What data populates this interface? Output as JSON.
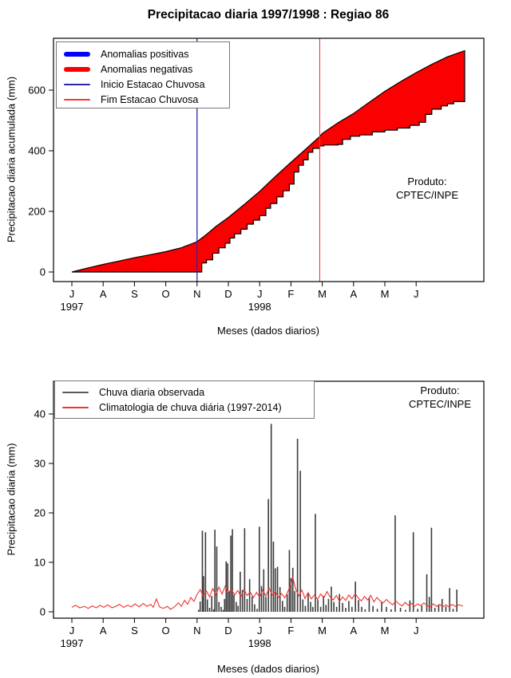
{
  "title": "Precipitacao diaria 1997/1998 : Regiao 86",
  "months": [
    "J",
    "A",
    "S",
    "O",
    "N",
    "D",
    "J",
    "F",
    "M",
    "A",
    "M",
    "J"
  ],
  "years": [
    {
      "label": "1997",
      "month_index": 0
    },
    {
      "label": "1998",
      "month_index": 6
    }
  ],
  "chart_data": [
    {
      "type": "area",
      "name": "cumulative-precipitation",
      "title": "Precipitacao diaria 1997/1998 : Regiao 86",
      "ylabel": "Precipitacao diaria acumulada (mm)",
      "xlabel": "Meses (dados diarios)",
      "yticks": [
        0,
        200,
        400,
        600
      ],
      "ylim": [
        0,
        770
      ],
      "grid": false,
      "legend_position": "top-left",
      "produto_label": "Produto:",
      "produto_value": "CPTEC/INPE",
      "legend": [
        {
          "label": "Anomalias positivas",
          "color": "#0000ff",
          "thick": true
        },
        {
          "label": "Anomalias negativas",
          "color": "#fb0000",
          "thick": true
        },
        {
          "label": "Inicio Estacao Chuvosa",
          "color": "#2828a8",
          "thick": false
        },
        {
          "label": "Fim Estacao Chuvosa",
          "color": "#ff3333",
          "thick": false
        }
      ],
      "inicio_month": 4.0,
      "fim_month": 7.92,
      "fill_color": "#fb0000",
      "edge_color": "#000000",
      "series": [
        {
          "name": "Climatologia acumulada",
          "role": "upper",
          "points": [
            [
              0,
              0
            ],
            [
              0.5,
              13
            ],
            [
              1,
              25
            ],
            [
              1.5,
              36
            ],
            [
              2,
              47
            ],
            [
              2.5,
              57
            ],
            [
              3,
              67
            ],
            [
              3.5,
              80
            ],
            [
              4,
              100
            ],
            [
              4.3,
              124
            ],
            [
              4.6,
              150
            ],
            [
              5,
              180
            ],
            [
              5.5,
              222
            ],
            [
              6,
              266
            ],
            [
              6.5,
              315
            ],
            [
              7,
              362
            ],
            [
              7.5,
              408
            ],
            [
              7.92,
              447
            ],
            [
              8,
              457
            ],
            [
              8.5,
              492
            ],
            [
              9,
              523
            ],
            [
              9.5,
              560
            ],
            [
              10,
              596
            ],
            [
              10.5,
              628
            ],
            [
              11,
              658
            ],
            [
              11.5,
              685
            ],
            [
              12,
              710
            ],
            [
              12.55,
              730
            ]
          ]
        },
        {
          "name": "Observada acumulada",
          "role": "lower-step",
          "points": [
            [
              4.05,
              0
            ],
            [
              4.15,
              30
            ],
            [
              4.3,
              40
            ],
            [
              4.5,
              62
            ],
            [
              4.7,
              80
            ],
            [
              4.9,
              95
            ],
            [
              5.05,
              112
            ],
            [
              5.2,
              126
            ],
            [
              5.4,
              141
            ],
            [
              5.6,
              158
            ],
            [
              5.8,
              171
            ],
            [
              6.0,
              186
            ],
            [
              6.2,
              210
            ],
            [
              6.35,
              226
            ],
            [
              6.55,
              248
            ],
            [
              6.75,
              268
            ],
            [
              6.95,
              290
            ],
            [
              7.1,
              330
            ],
            [
              7.25,
              352
            ],
            [
              7.4,
              370
            ],
            [
              7.55,
              395
            ],
            [
              7.7,
              408
            ],
            [
              7.92,
              416
            ],
            [
              8.05,
              419
            ],
            [
              8.5,
              421
            ],
            [
              8.65,
              438
            ],
            [
              8.9,
              448
            ],
            [
              9.2,
              452
            ],
            [
              9.6,
              462
            ],
            [
              10.0,
              468
            ],
            [
              10.4,
              475
            ],
            [
              10.8,
              484
            ],
            [
              11.1,
              494
            ],
            [
              11.3,
              520
            ],
            [
              11.5,
              537
            ],
            [
              11.8,
              548
            ],
            [
              12.0,
              555
            ],
            [
              12.2,
              562
            ],
            [
              12.55,
              575
            ]
          ]
        }
      ]
    },
    {
      "type": "bar",
      "name": "daily-precipitation",
      "ylabel": "Precipitacao diaria (mm)",
      "xlabel": "Meses (dados diarios)",
      "yticks": [
        0,
        10,
        20,
        30,
        40
      ],
      "ylim": [
        0,
        46
      ],
      "grid": false,
      "legend_position": "top-left",
      "produto_label": "Produto:",
      "produto_value": "CPTEC/INPE",
      "legend": [
        {
          "label": "Chuva diaria observada",
          "color": "#5a5a5a",
          "thick": false
        },
        {
          "label": "Climatologia de chuva diária (1997-2014)",
          "color": "#ef3333",
          "thick": false
        }
      ],
      "bars": {
        "name": "Chuva diaria observada",
        "color": "#3c3c3c",
        "points": [
          [
            4.05,
            0.4
          ],
          [
            4.1,
            2.1
          ],
          [
            4.17,
            16.4
          ],
          [
            4.21,
            7.2
          ],
          [
            4.27,
            16.1
          ],
          [
            4.33,
            2.5
          ],
          [
            4.4,
            0.8
          ],
          [
            4.47,
            3.2
          ],
          [
            4.53,
            0.5
          ],
          [
            4.57,
            16.6
          ],
          [
            4.63,
            13.2
          ],
          [
            4.7,
            2
          ],
          [
            4.77,
            1
          ],
          [
            4.83,
            0.4
          ],
          [
            4.88,
            2.6
          ],
          [
            4.93,
            10.2
          ],
          [
            4.98,
            9.8
          ],
          [
            5.03,
            4.1
          ],
          [
            5.08,
            15.4
          ],
          [
            5.13,
            16.7
          ],
          [
            5.18,
            3.4
          ],
          [
            5.25,
            2
          ],
          [
            5.31,
            1.2
          ],
          [
            5.38,
            8.1
          ],
          [
            5.45,
            4.4
          ],
          [
            5.52,
            16.9
          ],
          [
            5.6,
            2.6
          ],
          [
            5.68,
            6.6
          ],
          [
            5.76,
            3.1
          ],
          [
            5.84,
            1.5
          ],
          [
            5.92,
            0.6
          ],
          [
            5.99,
            17.2
          ],
          [
            6.06,
            5.2
          ],
          [
            6.13,
            8.6
          ],
          [
            6.2,
            3
          ],
          [
            6.28,
            22.8
          ],
          [
            6.37,
            38
          ],
          [
            6.44,
            14.2
          ],
          [
            6.5,
            8.8
          ],
          [
            6.57,
            9.1
          ],
          [
            6.65,
            5
          ],
          [
            6.73,
            2.2
          ],
          [
            6.8,
            1
          ],
          [
            6.88,
            3.5
          ],
          [
            6.95,
            12.5
          ],
          [
            7.0,
            6.8
          ],
          [
            7.06,
            8.9
          ],
          [
            7.12,
            4.2
          ],
          [
            7.21,
            35
          ],
          [
            7.3,
            28.5
          ],
          [
            7.38,
            2.5
          ],
          [
            7.46,
            1.2
          ],
          [
            7.55,
            3.8
          ],
          [
            7.63,
            2
          ],
          [
            7.7,
            1
          ],
          [
            7.78,
            19.8
          ],
          [
            7.86,
            2.4
          ],
          [
            7.95,
            1
          ],
          [
            8.04,
            3.2
          ],
          [
            8.12,
            1.4
          ],
          [
            8.2,
            2.6
          ],
          [
            8.29,
            5.1
          ],
          [
            8.37,
            2
          ],
          [
            8.46,
            1
          ],
          [
            8.55,
            3.6
          ],
          [
            8.65,
            1.8
          ],
          [
            8.75,
            0.8
          ],
          [
            8.85,
            2.2
          ],
          [
            8.95,
            1
          ],
          [
            9.06,
            6.1
          ],
          [
            9.16,
            2.4
          ],
          [
            9.26,
            1
          ],
          [
            9.37,
            0.5
          ],
          [
            9.5,
            2.8
          ],
          [
            9.62,
            1.2
          ],
          [
            9.76,
            0.6
          ],
          [
            9.9,
            2
          ],
          [
            10.05,
            1
          ],
          [
            10.2,
            0.5
          ],
          [
            10.33,
            19.5
          ],
          [
            10.5,
            0.8
          ],
          [
            10.66,
            0.4
          ],
          [
            10.8,
            2.3
          ],
          [
            10.91,
            16.1
          ],
          [
            11.05,
            0.6
          ],
          [
            11.18,
            1.2
          ],
          [
            11.34,
            7.6
          ],
          [
            11.42,
            3
          ],
          [
            11.49,
            17
          ],
          [
            11.6,
            0.8
          ],
          [
            11.72,
            1.4
          ],
          [
            11.83,
            2.6
          ],
          [
            11.95,
            1.1
          ],
          [
            12.07,
            4.8
          ],
          [
            12.18,
            0.6
          ],
          [
            12.3,
            4.5
          ]
        ]
      },
      "line": {
        "name": "Climatologia de chuva diária (1997-2014)",
        "color": "#ef3333",
        "points": [
          [
            0,
            0.9
          ],
          [
            0.12,
            1.3
          ],
          [
            0.25,
            0.8
          ],
          [
            0.4,
            1.1
          ],
          [
            0.52,
            0.7
          ],
          [
            0.65,
            1.2
          ],
          [
            0.78,
            0.8
          ],
          [
            0.9,
            1.3
          ],
          [
            1.02,
            0.9
          ],
          [
            1.15,
            1.4
          ],
          [
            1.28,
            0.8
          ],
          [
            1.4,
            1.1
          ],
          [
            1.52,
            1.5
          ],
          [
            1.65,
            0.9
          ],
          [
            1.78,
            1.3
          ],
          [
            1.9,
            1.0
          ],
          [
            2.02,
            1.6
          ],
          [
            2.15,
            1.0
          ],
          [
            2.28,
            1.7
          ],
          [
            2.4,
            1.1
          ],
          [
            2.52,
            1.5
          ],
          [
            2.6,
            0.9
          ],
          [
            2.7,
            2.6
          ],
          [
            2.8,
            1.0
          ],
          [
            2.92,
            0.7
          ],
          [
            3.05,
            1.1
          ],
          [
            3.15,
            0.5
          ],
          [
            3.28,
            1.0
          ],
          [
            3.4,
            1.8
          ],
          [
            3.5,
            1.1
          ],
          [
            3.6,
            2.3
          ],
          [
            3.7,
            1.5
          ],
          [
            3.8,
            2.9
          ],
          [
            3.9,
            2.1
          ],
          [
            4.0,
            3.5
          ],
          [
            4.1,
            4.5
          ],
          [
            4.2,
            3.2
          ],
          [
            4.3,
            4.2
          ],
          [
            4.4,
            3.0
          ],
          [
            4.5,
            4.7
          ],
          [
            4.6,
            3.5
          ],
          [
            4.7,
            5.0
          ],
          [
            4.8,
            3.6
          ],
          [
            4.9,
            5.2
          ],
          [
            5.0,
            3.9
          ],
          [
            5.1,
            4.6
          ],
          [
            5.2,
            3.4
          ],
          [
            5.3,
            4.3
          ],
          [
            5.4,
            3.1
          ],
          [
            5.5,
            4.5
          ],
          [
            5.6,
            3.3
          ],
          [
            5.7,
            4.0
          ],
          [
            5.8,
            2.9
          ],
          [
            5.9,
            3.9
          ],
          [
            6.0,
            3.0
          ],
          [
            6.1,
            4.4
          ],
          [
            6.2,
            3.2
          ],
          [
            6.3,
            4.8
          ],
          [
            6.4,
            3.4
          ],
          [
            6.5,
            4.1
          ],
          [
            6.6,
            2.9
          ],
          [
            6.7,
            3.7
          ],
          [
            6.8,
            2.8
          ],
          [
            6.9,
            4.1
          ],
          [
            7.0,
            5.6
          ],
          [
            7.05,
            7.1
          ],
          [
            7.15,
            4.6
          ],
          [
            7.25,
            3.2
          ],
          [
            7.35,
            4.4
          ],
          [
            7.45,
            2.7
          ],
          [
            7.55,
            3.9
          ],
          [
            7.65,
            2.6
          ],
          [
            7.75,
            3.4
          ],
          [
            7.85,
            2.5
          ],
          [
            7.95,
            3.6
          ],
          [
            8.05,
            2.8
          ],
          [
            8.15,
            4.1
          ],
          [
            8.25,
            3.0
          ],
          [
            8.35,
            2.4
          ],
          [
            8.45,
            3.3
          ],
          [
            8.55,
            2.1
          ],
          [
            8.65,
            3.0
          ],
          [
            8.75,
            2.3
          ],
          [
            8.85,
            3.4
          ],
          [
            8.95,
            2.6
          ],
          [
            9.05,
            3.7
          ],
          [
            9.15,
            2.8
          ],
          [
            9.25,
            2.2
          ],
          [
            9.35,
            3.1
          ],
          [
            9.45,
            2.4
          ],
          [
            9.55,
            3.3
          ],
          [
            9.65,
            2.0
          ],
          [
            9.75,
            2.9
          ],
          [
            9.85,
            2.2
          ],
          [
            9.95,
            1.8
          ],
          [
            10.05,
            2.5
          ],
          [
            10.15,
            1.9
          ],
          [
            10.25,
            1.4
          ],
          [
            10.35,
            2.2
          ],
          [
            10.45,
            1.6
          ],
          [
            10.55,
            1.2
          ],
          [
            10.65,
            1.9
          ],
          [
            10.75,
            1.3
          ],
          [
            10.85,
            1.7
          ],
          [
            10.95,
            1.1
          ],
          [
            11.05,
            1.6
          ],
          [
            11.15,
            1.2
          ],
          [
            11.25,
            1.8
          ],
          [
            11.35,
            1.3
          ],
          [
            11.45,
            1.0
          ],
          [
            11.55,
            1.6
          ],
          [
            11.65,
            1.1
          ],
          [
            11.75,
            1.5
          ],
          [
            11.85,
            1.0
          ],
          [
            11.95,
            1.4
          ],
          [
            12.05,
            1.0
          ],
          [
            12.15,
            1.5
          ],
          [
            12.25,
            1.1
          ],
          [
            12.35,
            1.4
          ],
          [
            12.5,
            1.2
          ]
        ]
      }
    }
  ]
}
